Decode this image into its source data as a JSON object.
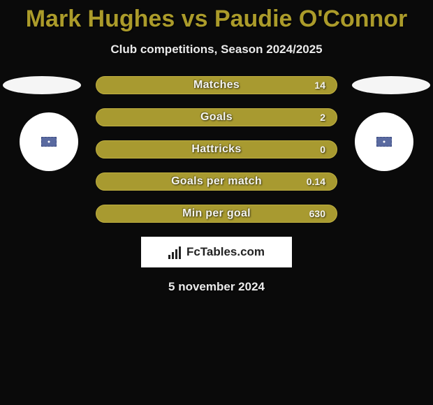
{
  "background_color": "#0a0a0a",
  "title": {
    "text": "Mark Hughes vs Paudie O'Connor",
    "color": "#ab9b2a",
    "fontsize": 34,
    "fontweight": 800
  },
  "subtitle": {
    "text": "Club competitions, Season 2024/2025",
    "color": "#eaeaea",
    "fontsize": 17
  },
  "avatars": {
    "ellipse_color": "#f5f5f5",
    "circle_color": "#ffffff",
    "inner_color": "#5a6aa0"
  },
  "bars": {
    "fill_color": "#a89a30",
    "border_color": "#c0b040",
    "label_color": "#f5f5f0",
    "value_color": "#f5f5f0",
    "height": 26,
    "radius": 13,
    "gap": 20,
    "items": [
      {
        "label": "Matches",
        "value": "14"
      },
      {
        "label": "Goals",
        "value": "2"
      },
      {
        "label": "Hattricks",
        "value": "0"
      },
      {
        "label": "Goals per match",
        "value": "0.14"
      },
      {
        "label": "Min per goal",
        "value": "630"
      }
    ]
  },
  "logo": {
    "text": "FcTables.com",
    "bg": "#ffffff",
    "text_color": "#222222"
  },
  "date": {
    "text": "5 november 2024",
    "color": "#eaeaea",
    "fontsize": 17
  }
}
